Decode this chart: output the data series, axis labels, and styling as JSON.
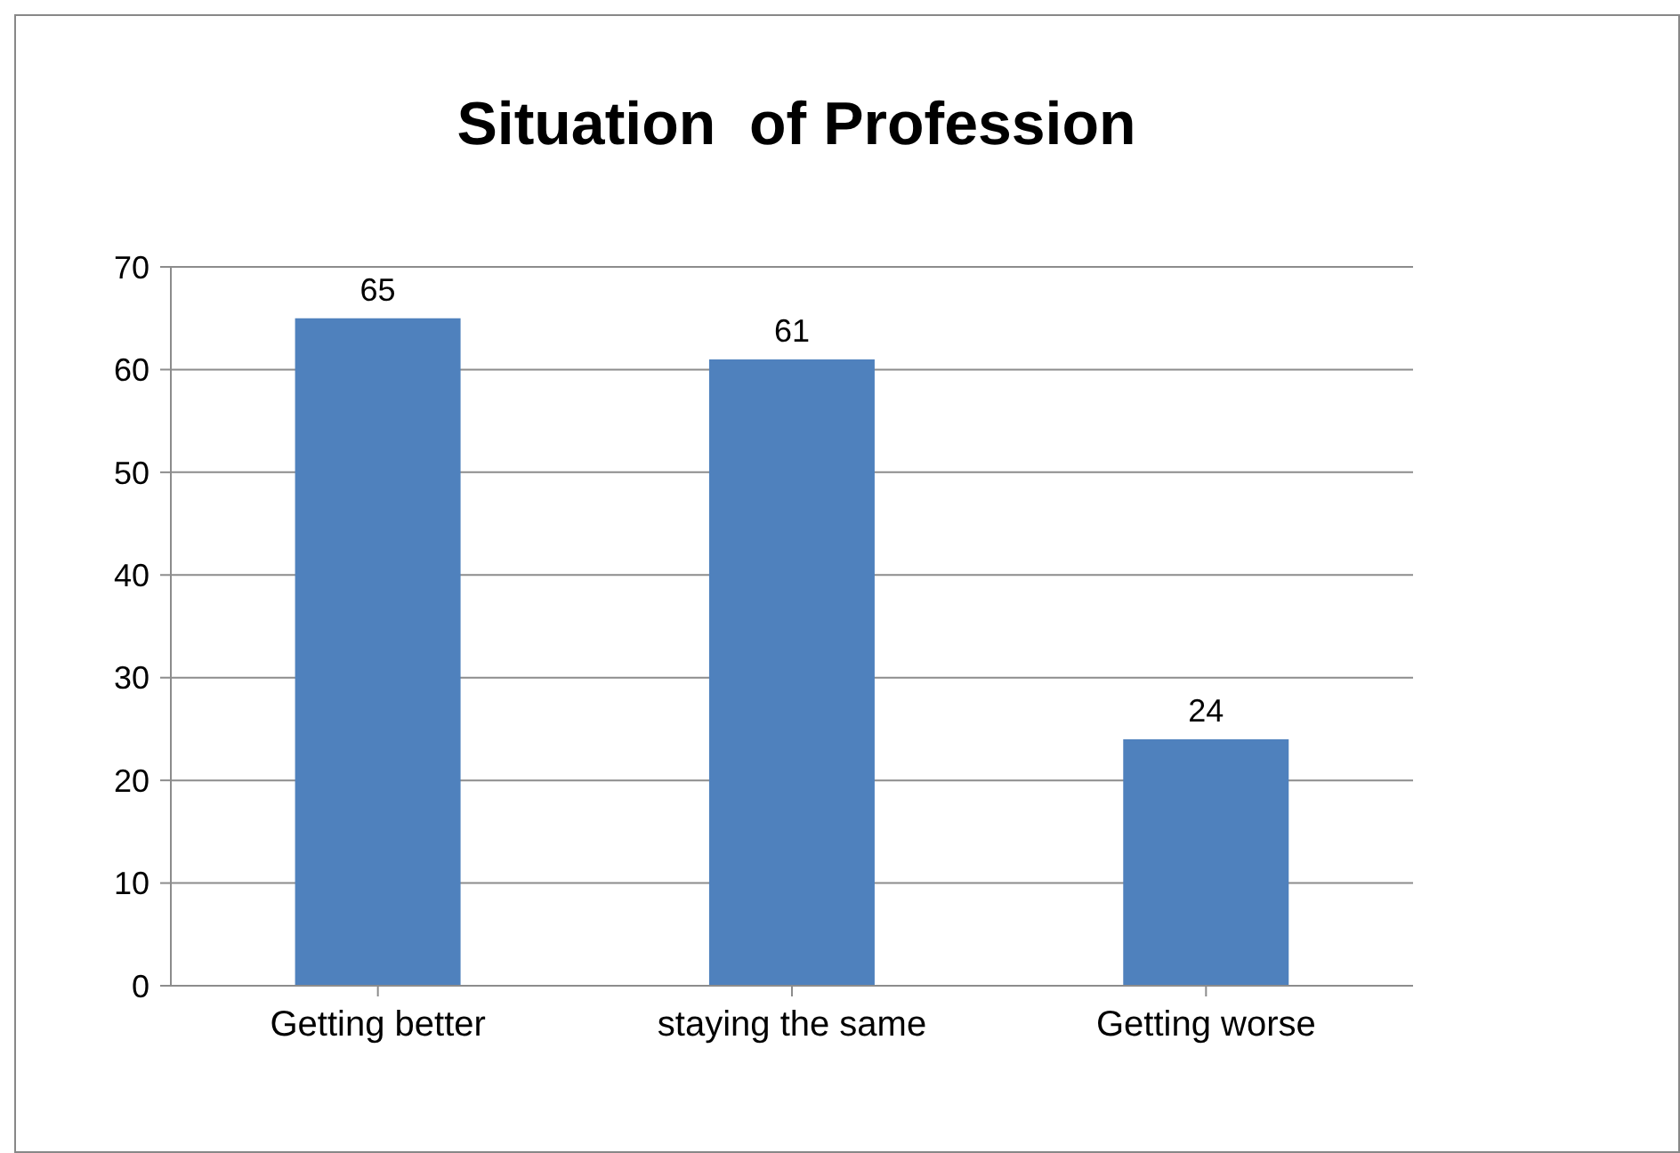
{
  "chart_data": {
    "type": "bar",
    "title": "Situation  of Profession",
    "categories": [
      "Getting better",
      "staying the same",
      "Getting worse"
    ],
    "values": [
      65,
      61,
      24
    ],
    "color": "#4f81bd",
    "ylim": [
      0,
      70
    ],
    "yticks": [
      0,
      10,
      20,
      30,
      40,
      50,
      60,
      70
    ],
    "grid": "y",
    "data_labels": true
  }
}
